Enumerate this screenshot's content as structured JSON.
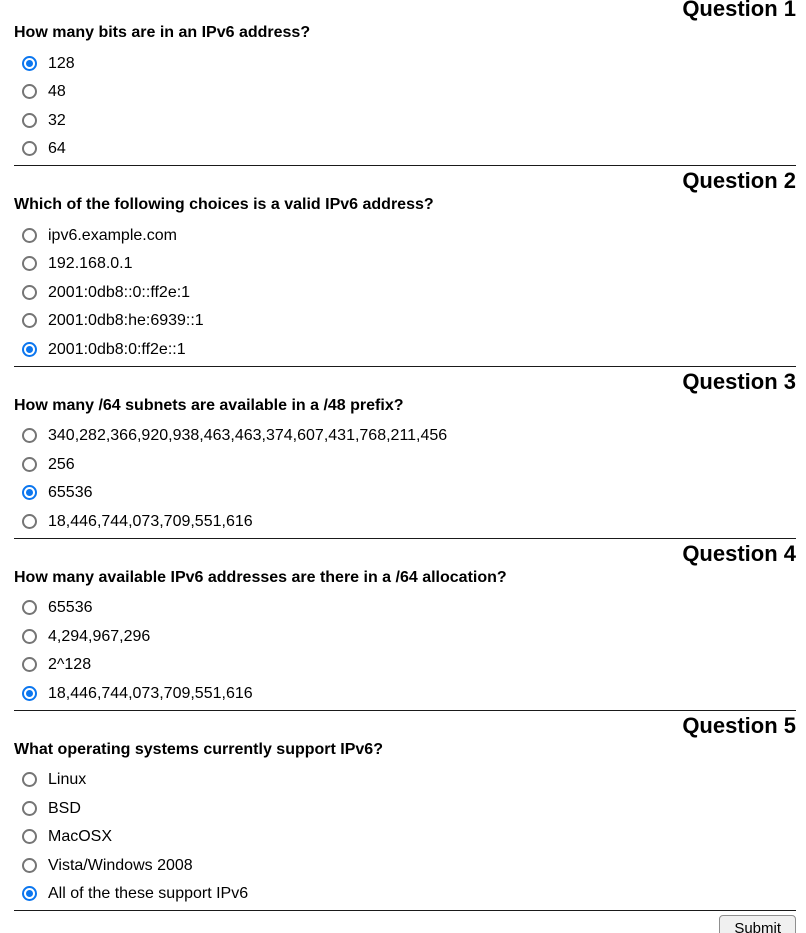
{
  "quiz": {
    "questions": [
      {
        "number": "Question 1",
        "text": "How many bits are in an IPv6 address?",
        "options": [
          {
            "label": "128",
            "selected": true
          },
          {
            "label": "48",
            "selected": false
          },
          {
            "label": "32",
            "selected": false
          },
          {
            "label": "64",
            "selected": false
          }
        ]
      },
      {
        "number": "Question 2",
        "text": "Which of the following choices is a valid IPv6 address?",
        "options": [
          {
            "label": "ipv6.example.com",
            "selected": false
          },
          {
            "label": "192.168.0.1",
            "selected": false
          },
          {
            "label": "2001:0db8::0::ff2e:1",
            "selected": false
          },
          {
            "label": "2001:0db8:he:6939::1",
            "selected": false
          },
          {
            "label": "2001:0db8:0:ff2e::1",
            "selected": true
          }
        ]
      },
      {
        "number": "Question 3",
        "text": "How many /64 subnets are available in a /48 prefix?",
        "options": [
          {
            "label": "340,282,366,920,938,463,463,374,607,431,768,211,456",
            "selected": false
          },
          {
            "label": "256",
            "selected": false
          },
          {
            "label": "65536",
            "selected": true
          },
          {
            "label": "18,446,744,073,709,551,616",
            "selected": false
          }
        ]
      },
      {
        "number": "Question 4",
        "text": "How many available IPv6 addresses are there in a /64 allocation?",
        "options": [
          {
            "label": "65536",
            "selected": false
          },
          {
            "label": "4,294,967,296",
            "selected": false
          },
          {
            "label": "2^128",
            "selected": false
          },
          {
            "label": "18,446,744,073,709,551,616",
            "selected": true
          }
        ]
      },
      {
        "number": "Question 5",
        "text": "What operating systems currently support IPv6?",
        "options": [
          {
            "label": "Linux",
            "selected": false
          },
          {
            "label": "BSD",
            "selected": false
          },
          {
            "label": "MacOSX",
            "selected": false
          },
          {
            "label": "Vista/Windows 2008",
            "selected": false
          },
          {
            "label": "All of the these support IPv6",
            "selected": true
          }
        ]
      }
    ],
    "submit_label": "Submit"
  },
  "colors": {
    "radio_selected": "#0b76ef",
    "radio_unselected": "#757575",
    "divider": "#1a1a1a"
  }
}
